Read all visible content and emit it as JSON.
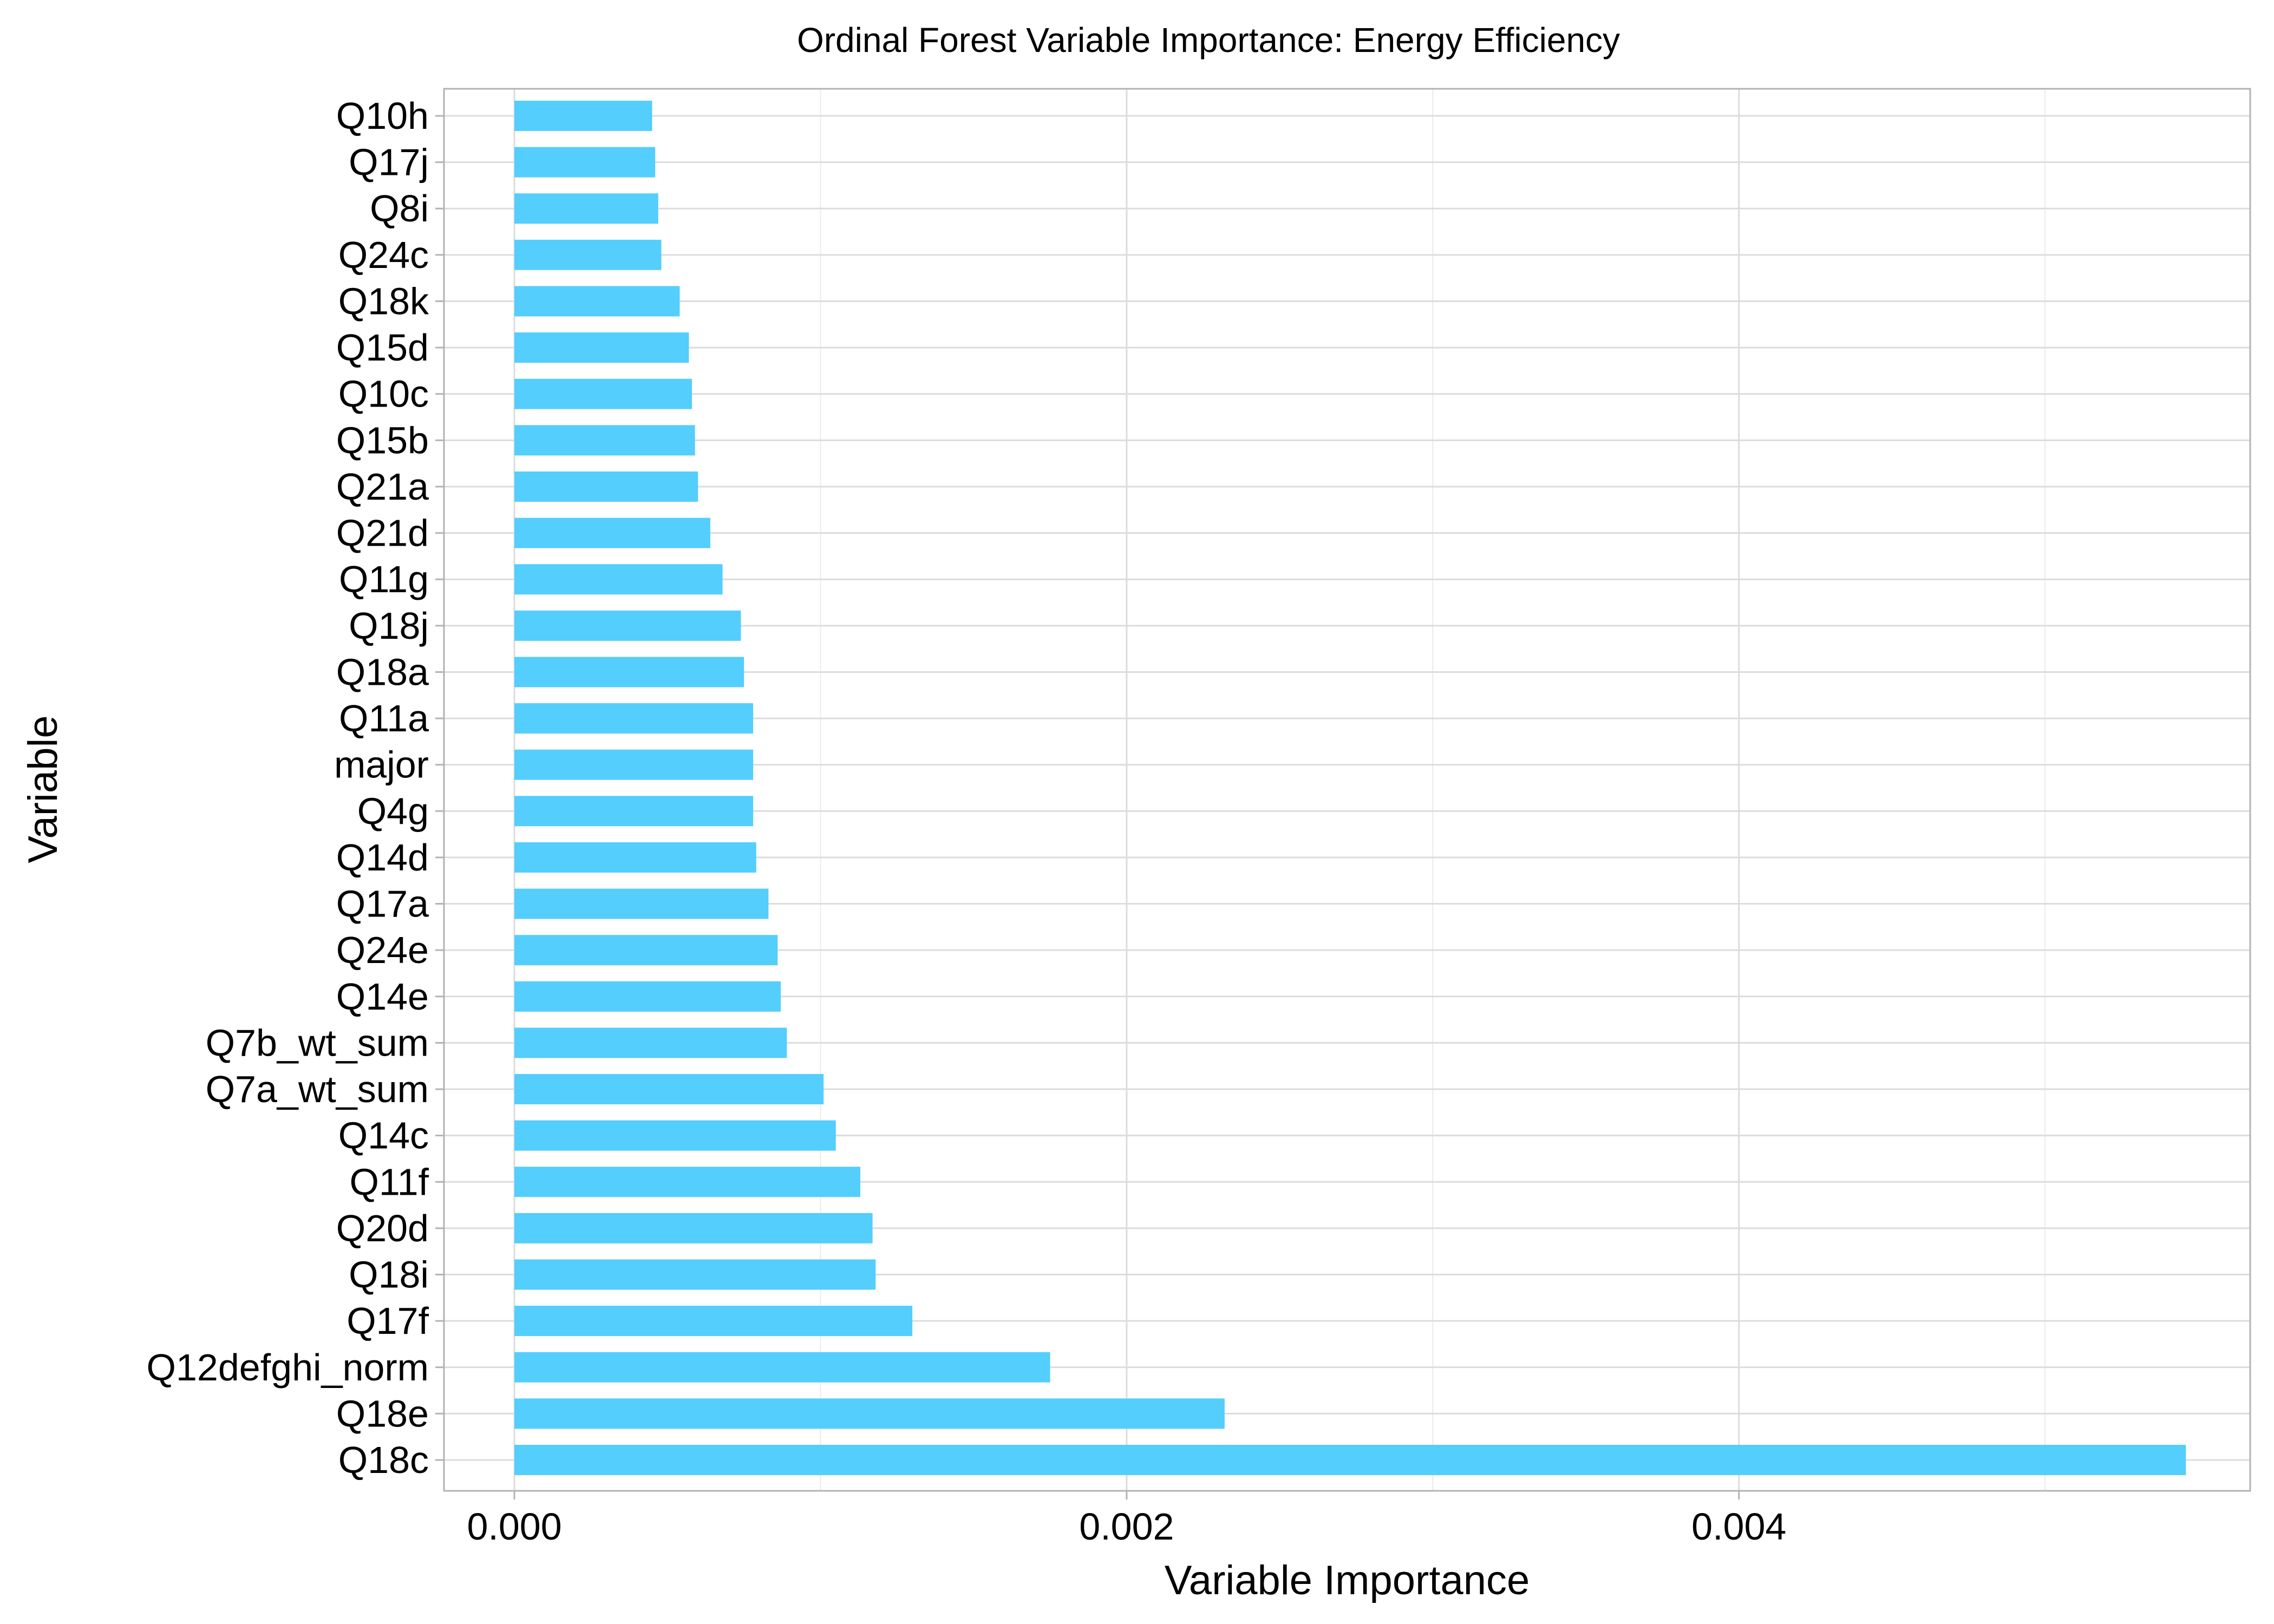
{
  "chart_data": {
    "type": "bar",
    "orientation": "horizontal",
    "title": "Ordinal Forest Variable Importance: Energy Efficiency",
    "xlabel": "Variable Importance",
    "ylabel": "Variable",
    "xlim": [
      -0.00023,
      0.00567
    ],
    "xticks": [
      0.0,
      0.002,
      0.004
    ],
    "xtick_labels": [
      "0.000",
      "0.002",
      "0.004"
    ],
    "grid": true,
    "bar_color": "#54cefd",
    "categories": [
      "Q10h",
      "Q17j",
      "Q8i",
      "Q24c",
      "Q18k",
      "Q15d",
      "Q10c",
      "Q15b",
      "Q21a",
      "Q21d",
      "Q11g",
      "Q18j",
      "Q18a",
      "Q11a",
      "major",
      "Q4g",
      "Q14d",
      "Q17a",
      "Q24e",
      "Q14e",
      "Q7b_wt_sum",
      "Q7a_wt_sum",
      "Q14c",
      "Q11f",
      "Q20d",
      "Q18i",
      "Q17f",
      "Q12defghi_norm",
      "Q18e",
      "Q18c"
    ],
    "values": [
      0.00045,
      0.00046,
      0.00047,
      0.00048,
      0.00054,
      0.00057,
      0.00058,
      0.00059,
      0.0006,
      0.00064,
      0.00068,
      0.00074,
      0.00075,
      0.00078,
      0.00078,
      0.00078,
      0.00079,
      0.00083,
      0.00086,
      0.00087,
      0.00089,
      0.00101,
      0.00105,
      0.00113,
      0.00117,
      0.00118,
      0.0013,
      0.00175,
      0.00232,
      0.00546
    ]
  }
}
